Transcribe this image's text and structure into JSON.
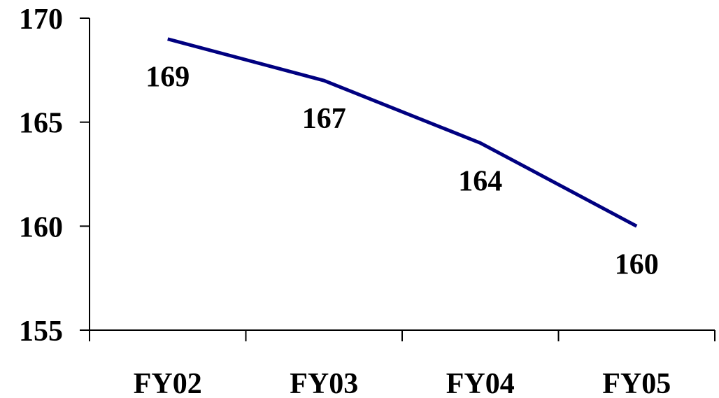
{
  "chart_data": {
    "type": "line",
    "categories": [
      "FY02",
      "FY03",
      "FY04",
      "FY05"
    ],
    "series": [
      {
        "values": [
          169,
          167,
          164,
          160
        ],
        "data_labels": [
          "169",
          "167",
          "164",
          "160"
        ],
        "color": "#000080"
      }
    ],
    "y_ticks": [
      "155",
      "160",
      "165",
      "170"
    ],
    "ylim": [
      155,
      170
    ],
    "grid": false,
    "legend": "none",
    "title": "",
    "xlabel": "",
    "ylabel": ""
  }
}
